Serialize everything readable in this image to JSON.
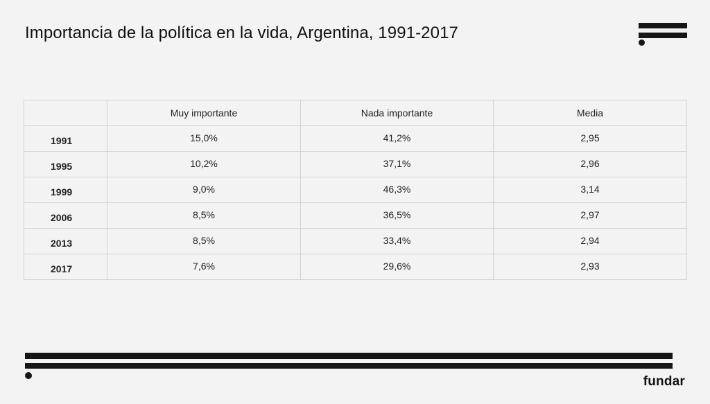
{
  "header": {
    "title": "Importancia de la política en la vida, Argentina, 1991-2017"
  },
  "table": {
    "columns": [
      "",
      "Muy importante",
      "Nada importante",
      "Media"
    ],
    "rows": [
      {
        "year": "1991",
        "muy": "15,0%",
        "nada": "41,2%",
        "media": "2,95"
      },
      {
        "year": "1995",
        "muy": "10,2%",
        "nada": "37,1%",
        "media": "2,96"
      },
      {
        "year": "1999",
        "muy": "9,0%",
        "nada": "46,3%",
        "media": "3,14"
      },
      {
        "year": "2006",
        "muy": "8,5%",
        "nada": "36,5%",
        "media": "2,97"
      },
      {
        "year": "2013",
        "muy": "8,5%",
        "nada": "33,4%",
        "media": "2,94"
      },
      {
        "year": "2017",
        "muy": "7,6%",
        "nada": "29,6%",
        "media": "2,93"
      }
    ]
  },
  "footer": {
    "brand": "fundar"
  },
  "colors": {
    "background": "#f3f3f3",
    "ink": "#161616",
    "grid": "#d3d3d3"
  }
}
